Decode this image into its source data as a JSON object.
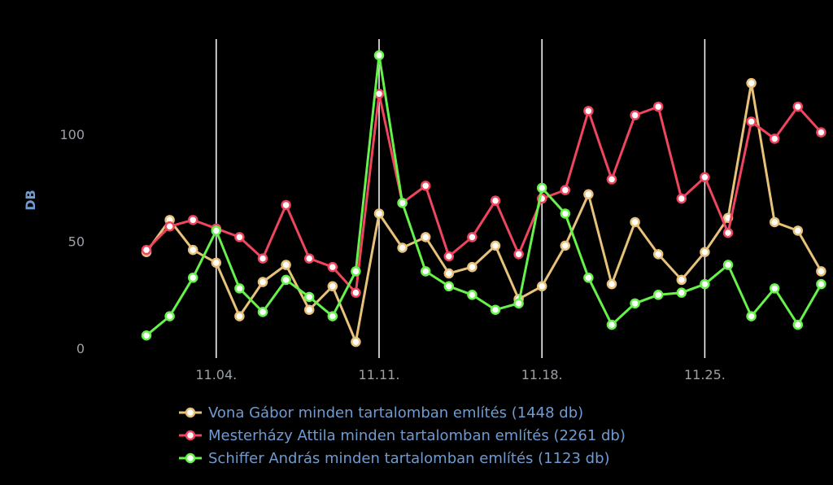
{
  "chart_data": {
    "type": "line",
    "title": "",
    "xlabel": "",
    "ylabel": "DB",
    "ylim": [
      0,
      137
    ],
    "yticks": [
      0,
      50,
      100
    ],
    "x_tick_labels": [
      "11.04.",
      "11.11.",
      "11.18.",
      "11.25."
    ],
    "x_tick_index": [
      3,
      10,
      17,
      24
    ],
    "grid": "vertical lines at x ticks",
    "legend_placement": "bottom",
    "series": [
      {
        "name": "Vona Gábor minden tartalomban említés (1448 db)",
        "color": "#e8c27a",
        "values": [
          45,
          60,
          46,
          40,
          15,
          31,
          39,
          18,
          29,
          3,
          63,
          47,
          52,
          35,
          38,
          48,
          23,
          29,
          48,
          72,
          30,
          59,
          44,
          32,
          45,
          61,
          124,
          59,
          55,
          36
        ]
      },
      {
        "name": "Mesterházy Attila minden tartalomban említés (2261 db)",
        "color": "#f0455e",
        "values": [
          46,
          57,
          60,
          56,
          52,
          42,
          67,
          42,
          38,
          26,
          119,
          68,
          76,
          43,
          52,
          69,
          44,
          70,
          74,
          111,
          79,
          109,
          113,
          70,
          80,
          54,
          106,
          98,
          113,
          101
        ]
      },
      {
        "name": "Schiffer András minden tartalomban említés (1123 db)",
        "color": "#66f24a",
        "values": [
          6,
          15,
          33,
          55,
          28,
          17,
          32,
          24,
          15,
          36,
          137,
          68,
          36,
          29,
          25,
          18,
          21,
          75,
          63,
          33,
          11,
          21,
          25,
          26,
          30,
          39,
          15,
          28,
          11,
          30
        ]
      }
    ]
  }
}
